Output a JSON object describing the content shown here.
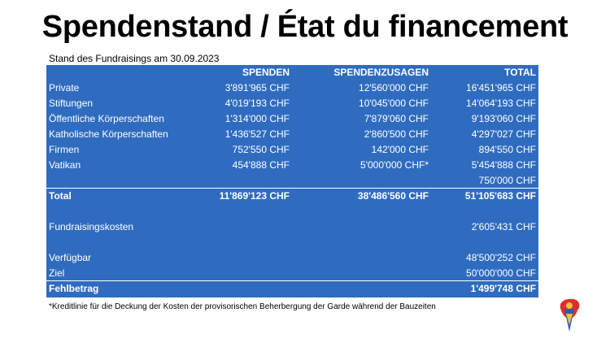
{
  "header": {
    "title": "Spendenstand / État du financement",
    "subtitle": "Stand des Fundraisings am 30.09.2023"
  },
  "table": {
    "columns": [
      "SPENDEN",
      "SPENDENZUSAGEN",
      "TOTAL"
    ],
    "rows": [
      {
        "label": "Private",
        "spenden": "3'891'965 CHF",
        "zusagen": "12'560'000 CHF",
        "total": "16'451'965 CHF"
      },
      {
        "label": "Stiftungen",
        "spenden": "4'019'193 CHF",
        "zusagen": "10'045'000 CHF",
        "total": "14'064'193 CHF"
      },
      {
        "label": "Öffentliche Körperschaften",
        "spenden": "1'314'000 CHF",
        "zusagen": "7'879'060 CHF",
        "total": "9'193'060 CHF"
      },
      {
        "label": "Katholische Körperschaften",
        "spenden": "1'436'527 CHF",
        "zusagen": "2'860'500 CHF",
        "total": "4'297'027 CHF"
      },
      {
        "label": "Firmen",
        "spenden": "752'550 CHF",
        "zusagen": "142'000 CHF",
        "total": "894'550 CHF"
      },
      {
        "label": "Vatikan",
        "spenden": "454'888 CHF",
        "zusagen": "5'000'000 CHF*",
        "total": "5'454'888 CHF"
      },
      {
        "total": "750'000 CHF"
      },
      {
        "label": "Total",
        "spenden": "11'869'123 CHF",
        "zusagen": "38'486'560 CHF",
        "total": "51'105'683 CHF"
      },
      {
        "label": "Fundraisingskosten",
        "total": "2'605'431 CHF"
      },
      {
        "label": "Verfügbar",
        "total": "48'500'252 CHF"
      },
      {
        "label": "Ziel",
        "total": "50'000'000 CHF"
      },
      {
        "label": "Fehlbetrag",
        "total": "1'499'748 CHF"
      }
    ]
  },
  "footnote": "*Kreditlinie für die Deckung der Kosten der provisorischen Beherbergung der Garde während der Bauzeiten"
}
